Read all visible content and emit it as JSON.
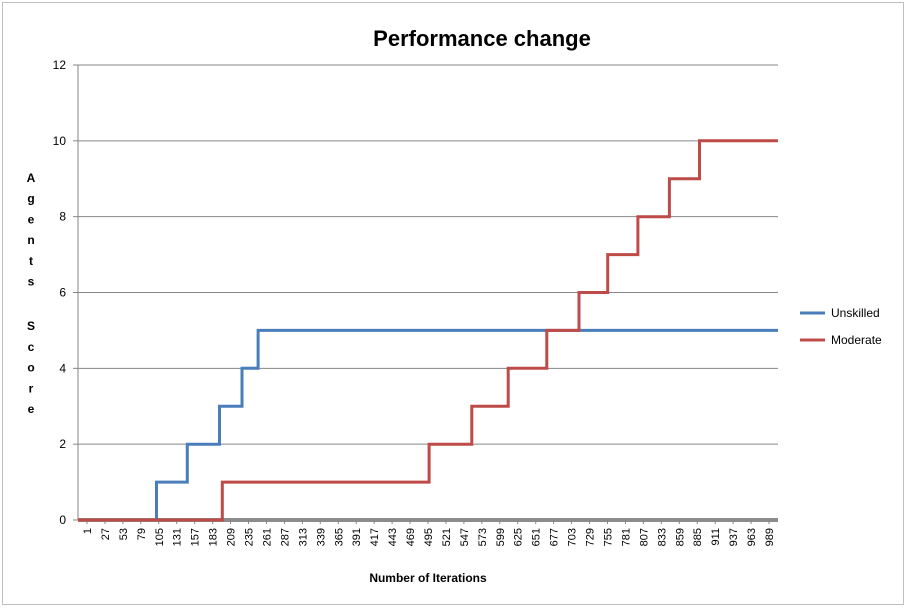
{
  "chart_data": {
    "type": "line",
    "title": "Performance change",
    "xlabel": "Number of Iterations",
    "ylabel": "Agents Score",
    "ylim": [
      0,
      12
    ],
    "yticks": [
      0,
      2,
      4,
      6,
      8,
      10,
      12
    ],
    "xlim": [
      1,
      1000
    ],
    "xticks": [
      1,
      27,
      53,
      79,
      105,
      131,
      157,
      183,
      209,
      235,
      261,
      287,
      313,
      339,
      365,
      391,
      417,
      443,
      469,
      495,
      521,
      547,
      573,
      599,
      625,
      651,
      677,
      703,
      729,
      755,
      781,
      807,
      833,
      859,
      885,
      911,
      937,
      963,
      989
    ],
    "grid": "horizontal",
    "legend": "right",
    "series": [
      {
        "name": "Unskilled",
        "color": "#4a7ebb",
        "x": [
          1,
          113,
          113,
          157,
          157,
          203,
          203,
          235,
          235,
          258,
          258,
          281,
          281,
          1000
        ],
        "y": [
          0,
          0,
          1,
          1,
          2,
          2,
          3,
          3,
          4,
          4,
          5,
          5,
          5,
          5
        ]
      },
      {
        "name": "Moderate",
        "color": "#be4b48",
        "x": [
          1,
          207,
          207,
          502,
          502,
          563,
          563,
          615,
          615,
          670,
          670,
          716,
          716,
          757,
          757,
          800,
          800,
          845,
          845,
          888,
          888,
          933,
          933,
          1000
        ],
        "y": [
          0,
          0,
          1,
          1,
          2,
          2,
          3,
          3,
          4,
          4,
          5,
          5,
          6,
          6,
          7,
          7,
          8,
          8,
          9,
          9,
          10,
          10,
          10,
          10
        ]
      }
    ]
  }
}
